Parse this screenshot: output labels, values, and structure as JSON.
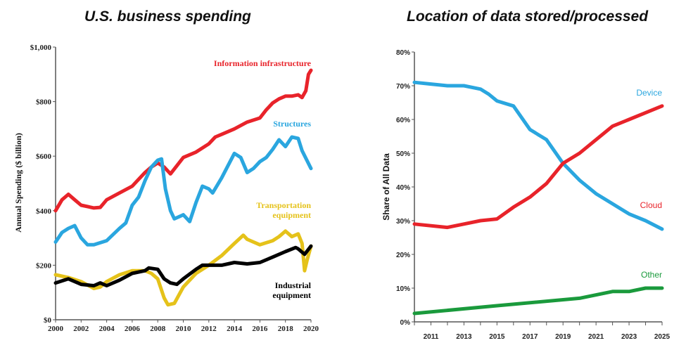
{
  "chart_data": [
    {
      "type": "line",
      "title": "U.S. business spending",
      "xlabel": "",
      "ylabel": "Annual Spending ($ billion)",
      "xlim": [
        2000,
        2020
      ],
      "ylim": [
        0,
        1000
      ],
      "xticks": [
        "2000",
        "2002",
        "2004",
        "2006",
        "2008",
        "2010",
        "2012",
        "2014",
        "2016",
        "2018",
        "2020"
      ],
      "yticks": [
        "$0",
        "$200",
        "$400",
        "$600",
        "$800",
        "$1,000"
      ],
      "series": [
        {
          "name": "Information infrastructure",
          "color": "#e8232a",
          "label_lines": [
            "Information infrastructure"
          ],
          "x": [
            2000,
            2000.5,
            2001,
            2001.5,
            2002,
            2003,
            2003.5,
            2004,
            2005,
            2006,
            2006.5,
            2007,
            2007.5,
            2008,
            2008.5,
            2009,
            2009.5,
            2010,
            2011,
            2012,
            2012.5,
            2013,
            2014,
            2015,
            2016,
            2016.5,
            2017,
            2017.5,
            2018,
            2018.5,
            2019,
            2019.3,
            2019.6,
            2019.8,
            2020
          ],
          "y": [
            400,
            440,
            460,
            440,
            420,
            410,
            412,
            440,
            465,
            490,
            515,
            540,
            560,
            575,
            560,
            535,
            565,
            595,
            615,
            645,
            670,
            680,
            700,
            725,
            740,
            770,
            795,
            810,
            820,
            820,
            825,
            815,
            840,
            900,
            915
          ]
        },
        {
          "name": "Structures",
          "color": "#2aa6df",
          "label_lines": [
            "Structures"
          ],
          "x": [
            2000,
            2000.5,
            2001,
            2001.5,
            2002,
            2002.5,
            2003,
            2004,
            2005,
            2005.5,
            2006,
            2006.5,
            2007,
            2007.5,
            2008,
            2008.3,
            2008.6,
            2009,
            2009.3,
            2010,
            2010.5,
            2011,
            2011.5,
            2012,
            2012.3,
            2013,
            2013.5,
            2014,
            2014.5,
            2015,
            2015.5,
            2016,
            2016.5,
            2017,
            2017.5,
            2018,
            2018.5,
            2019,
            2019.3,
            2020
          ],
          "y": [
            285,
            320,
            335,
            345,
            300,
            275,
            275,
            290,
            335,
            355,
            420,
            450,
            510,
            560,
            585,
            590,
            480,
            400,
            370,
            385,
            360,
            430,
            490,
            480,
            465,
            520,
            565,
            610,
            595,
            540,
            555,
            580,
            595,
            625,
            660,
            635,
            670,
            665,
            620,
            555
          ]
        },
        {
          "name": "Transportation equipment",
          "color": "#e5c21a",
          "label_lines": [
            "Transportation",
            "equipment"
          ],
          "x": [
            2000,
            2001,
            2002,
            2003,
            2003.5,
            2004,
            2005,
            2006,
            2007,
            2007.5,
            2008,
            2008.5,
            2008.8,
            2009.3,
            2010,
            2011,
            2012,
            2013,
            2014,
            2014.7,
            2015,
            2016,
            2017,
            2017.5,
            2018,
            2018.5,
            2019,
            2019.3,
            2019.5,
            2019.7,
            2020
          ],
          "y": [
            165,
            155,
            140,
            115,
            120,
            140,
            165,
            180,
            180,
            170,
            150,
            80,
            55,
            60,
            120,
            170,
            200,
            235,
            280,
            310,
            295,
            275,
            290,
            305,
            325,
            305,
            315,
            280,
            180,
            220,
            270
          ]
        },
        {
          "name": "Industrial equipment",
          "color": "#000000",
          "label_lines": [
            "Industrial",
            "equipment"
          ],
          "x": [
            2000,
            2001,
            2002,
            2003,
            2003.5,
            2004,
            2005,
            2006,
            2007,
            2007.3,
            2008,
            2008.5,
            2009,
            2009.5,
            2010,
            2011,
            2011.5,
            2012,
            2013,
            2013.5,
            2014,
            2015,
            2016,
            2017,
            2018,
            2018.8,
            2019,
            2019.5,
            2020
          ],
          "y": [
            135,
            150,
            130,
            125,
            135,
            125,
            145,
            170,
            180,
            190,
            185,
            150,
            135,
            130,
            150,
            185,
            200,
            200,
            200,
            205,
            210,
            205,
            210,
            230,
            250,
            265,
            260,
            240,
            270
          ]
        }
      ]
    },
    {
      "type": "line",
      "title": "Location of data stored/processed",
      "xlabel": "",
      "ylabel": "Share of All Data",
      "xlim": [
        2010,
        2025
      ],
      "ylim": [
        0,
        80
      ],
      "xticks": [
        "2011",
        "2013",
        "2015",
        "2017",
        "2019",
        "2021",
        "2023",
        "2025"
      ],
      "yticks": [
        "0%",
        "10%",
        "20%",
        "30%",
        "40%",
        "50%",
        "60%",
        "70%",
        "80%"
      ],
      "series": [
        {
          "name": "Device",
          "color": "#2aa6df",
          "label_lines": [
            "Device"
          ],
          "x": [
            2010,
            2011,
            2012,
            2013,
            2014,
            2014.5,
            2015,
            2016,
            2017,
            2018,
            2019,
            2020,
            2021,
            2022,
            2023,
            2024,
            2025
          ],
          "y": [
            71,
            70.5,
            70,
            70,
            69,
            67.5,
            65.5,
            64,
            57,
            54,
            47,
            42,
            38,
            35,
            32,
            30,
            27.5
          ]
        },
        {
          "name": "Cloud",
          "color": "#e8232a",
          "label_lines": [
            "Cloud"
          ],
          "x": [
            2010,
            2012,
            2013,
            2014,
            2015,
            2016,
            2017,
            2018,
            2019,
            2020,
            2021,
            2022,
            2023,
            2024,
            2025
          ],
          "y": [
            29,
            28,
            29,
            30,
            30.5,
            34,
            37,
            41,
            47,
            50,
            54,
            58,
            60,
            62,
            64
          ]
        },
        {
          "name": "Other",
          "color": "#1a9a3c",
          "label_lines": [
            "Other"
          ],
          "x": [
            2010,
            2015,
            2020,
            2022,
            2023,
            2024,
            2025
          ],
          "y": [
            2.5,
            4.8,
            7,
            9,
            9,
            10,
            10
          ]
        }
      ]
    }
  ]
}
